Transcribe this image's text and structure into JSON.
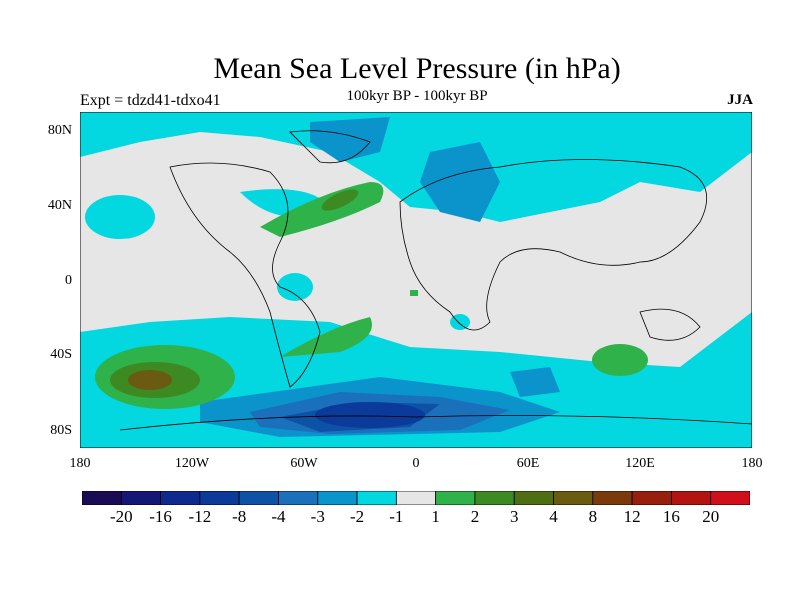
{
  "title": "Mean Sea Level Pressure (in hPa)",
  "subtitle": "100kyr BP - 100kyr BP",
  "left_subtitle": "Expt = tdzd41-tdxo41",
  "right_subtitle": "JJA",
  "lat_labels": [
    "80N",
    "40N",
    "0",
    "40S",
    "80S"
  ],
  "lat_values": [
    80,
    40,
    0,
    -40,
    -80
  ],
  "lon_labels": [
    "180",
    "120W",
    "60W",
    "0",
    "60E",
    "120E",
    "180"
  ],
  "lon_values": [
    -180,
    -120,
    -60,
    0,
    60,
    120,
    180
  ],
  "colorbar": {
    "labels": [
      "-20",
      "-16",
      "-12",
      "-8",
      "-4",
      "-3",
      "-2",
      "-1",
      "1",
      "2",
      "3",
      "4",
      "8",
      "12",
      "16",
      "20"
    ],
    "colors": [
      "#1a0c54",
      "#151676",
      "#0f2a8e",
      "#0b3a9a",
      "#0e52a8",
      "#1b70bc",
      "#0b93cc",
      "#03d7df",
      "#e6e6e6",
      "#2fb24a",
      "#3c8a21",
      "#4f6e14",
      "#6b5a12",
      "#7b3a0c",
      "#981f0d",
      "#b4140f",
      "#d00f1b"
    ]
  },
  "colors": {
    "land_outline": "#000000",
    "neutral": "#e6e6e6"
  }
}
